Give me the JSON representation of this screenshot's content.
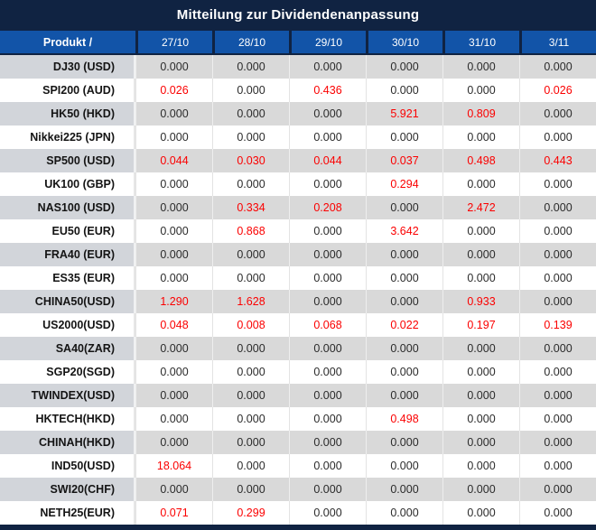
{
  "table": {
    "title": "Mitteilung zur Dividendenanpassung",
    "product_header": "Produkt /",
    "dates": [
      "27/10",
      "28/10",
      "29/10",
      "30/10",
      "31/10",
      "3/11"
    ],
    "zero_value": "0.000",
    "rows": [
      {
        "product": "DJ30 (USD)",
        "values": [
          "0.000",
          "0.000",
          "0.000",
          "0.000",
          "0.000",
          "0.000"
        ]
      },
      {
        "product": "SPI200 (AUD)",
        "values": [
          "0.026",
          "0.000",
          "0.436",
          "0.000",
          "0.000",
          "0.026"
        ]
      },
      {
        "product": "HK50 (HKD)",
        "values": [
          "0.000",
          "0.000",
          "0.000",
          "5.921",
          "0.809",
          "0.000"
        ]
      },
      {
        "product": "Nikkei225 (JPN)",
        "values": [
          "0.000",
          "0.000",
          "0.000",
          "0.000",
          "0.000",
          "0.000"
        ]
      },
      {
        "product": "SP500 (USD)",
        "values": [
          "0.044",
          "0.030",
          "0.044",
          "0.037",
          "0.498",
          "0.443"
        ]
      },
      {
        "product": "UK100 (GBP)",
        "values": [
          "0.000",
          "0.000",
          "0.000",
          "0.294",
          "0.000",
          "0.000"
        ]
      },
      {
        "product": "NAS100 (USD)",
        "values": [
          "0.000",
          "0.334",
          "0.208",
          "0.000",
          "2.472",
          "0.000"
        ]
      },
      {
        "product": "EU50 (EUR)",
        "values": [
          "0.000",
          "0.868",
          "0.000",
          "3.642",
          "0.000",
          "0.000"
        ]
      },
      {
        "product": "FRA40 (EUR)",
        "values": [
          "0.000",
          "0.000",
          "0.000",
          "0.000",
          "0.000",
          "0.000"
        ]
      },
      {
        "product": "ES35 (EUR)",
        "values": [
          "0.000",
          "0.000",
          "0.000",
          "0.000",
          "0.000",
          "0.000"
        ]
      },
      {
        "product": "CHINA50(USD)",
        "values": [
          "1.290",
          "1.628",
          "0.000",
          "0.000",
          "0.933",
          "0.000"
        ]
      },
      {
        "product": "US2000(USD)",
        "values": [
          "0.048",
          "0.008",
          "0.068",
          "0.022",
          "0.197",
          "0.139"
        ]
      },
      {
        "product": "SA40(ZAR)",
        "values": [
          "0.000",
          "0.000",
          "0.000",
          "0.000",
          "0.000",
          "0.000"
        ]
      },
      {
        "product": "SGP20(SGD)",
        "values": [
          "0.000",
          "0.000",
          "0.000",
          "0.000",
          "0.000",
          "0.000"
        ]
      },
      {
        "product": "TWINDEX(USD)",
        "values": [
          "0.000",
          "0.000",
          "0.000",
          "0.000",
          "0.000",
          "0.000"
        ]
      },
      {
        "product": "HKTECH(HKD)",
        "values": [
          "0.000",
          "0.000",
          "0.000",
          "0.498",
          "0.000",
          "0.000"
        ]
      },
      {
        "product": "CHINAH(HKD)",
        "values": [
          "0.000",
          "0.000",
          "0.000",
          "0.000",
          "0.000",
          "0.000"
        ]
      },
      {
        "product": "IND50(USD)",
        "values": [
          "18.064",
          "0.000",
          "0.000",
          "0.000",
          "0.000",
          "0.000"
        ]
      },
      {
        "product": "SWI20(CHF)",
        "values": [
          "0.000",
          "0.000",
          "0.000",
          "0.000",
          "0.000",
          "0.000"
        ]
      },
      {
        "product": "NETH25(EUR)",
        "values": [
          "0.071",
          "0.299",
          "0.000",
          "0.000",
          "0.000",
          "0.000"
        ]
      }
    ]
  },
  "colors": {
    "header_navy": "#102342",
    "date_row_blue": "#1254a8",
    "stripe_gray": "#d9d9d9",
    "stripe_label_gray": "#d2d5da",
    "nonzero_red": "#fb0000",
    "value_text": "#2b2b2b",
    "header_text": "#ffffff"
  }
}
